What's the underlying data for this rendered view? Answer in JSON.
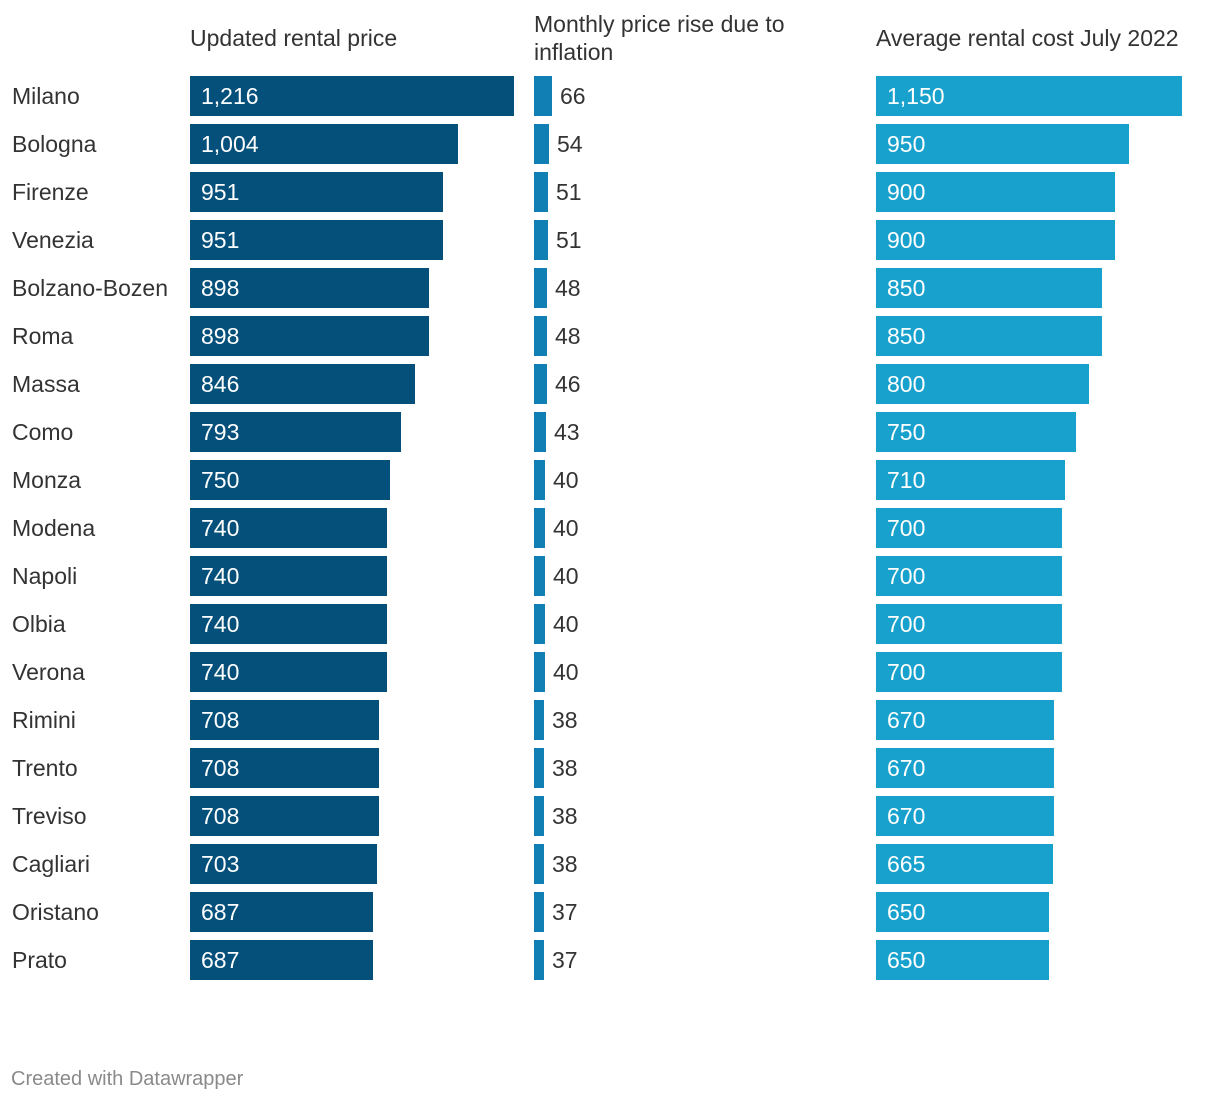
{
  "chart_data": {
    "type": "bar",
    "orientation": "horizontal",
    "categories": [
      "Milano",
      "Bologna",
      "Firenze",
      "Venezia",
      "Bolzano-Bozen",
      "Roma",
      "Massa",
      "Como",
      "Monza",
      "Modena",
      "Napoli",
      "Olbia",
      "Verona",
      "Rimini",
      "Trento",
      "Treviso",
      "Cagliari",
      "Oristano",
      "Prato"
    ],
    "series": [
      {
        "name": "Updated rental price",
        "color": "#04507a",
        "label_inside": true,
        "values": [
          1216,
          1004,
          951,
          951,
          898,
          898,
          846,
          793,
          750,
          740,
          740,
          740,
          740,
          708,
          708,
          708,
          703,
          687,
          687
        ],
        "labels": [
          "1,216",
          "1,004",
          "951",
          "951",
          "898",
          "898",
          "846",
          "793",
          "750",
          "740",
          "740",
          "740",
          "740",
          "708",
          "708",
          "708",
          "703",
          "687",
          "687"
        ]
      },
      {
        "name": "Monthly price rise due to inflation",
        "color": "#127fb4",
        "label_inside": false,
        "values": [
          66,
          54,
          51,
          51,
          48,
          48,
          46,
          43,
          40,
          40,
          40,
          40,
          40,
          38,
          38,
          38,
          38,
          37,
          37
        ],
        "labels": [
          "66",
          "54",
          "51",
          "51",
          "48",
          "48",
          "46",
          "43",
          "40",
          "40",
          "40",
          "40",
          "40",
          "38",
          "38",
          "38",
          "38",
          "37",
          "37"
        ]
      },
      {
        "name": "Average rental cost July 2022",
        "color": "#18a1cd",
        "label_inside": true,
        "values": [
          1150,
          950,
          900,
          900,
          850,
          850,
          800,
          750,
          710,
          700,
          700,
          700,
          700,
          670,
          670,
          670,
          665,
          650,
          650
        ],
        "labels": [
          "1,150",
          "950",
          "900",
          "900",
          "850",
          "850",
          "800",
          "750",
          "710",
          "700",
          "700",
          "700",
          "700",
          "670",
          "670",
          "670",
          "665",
          "650",
          "650"
        ]
      }
    ]
  },
  "titles": {
    "col1": "Updated rental price",
    "col2_line1": "Monthly price rise due to",
    "col2_line2": "inflation",
    "col3": "Average rental cost July 2022"
  },
  "footer": "Created with Datawrapper"
}
